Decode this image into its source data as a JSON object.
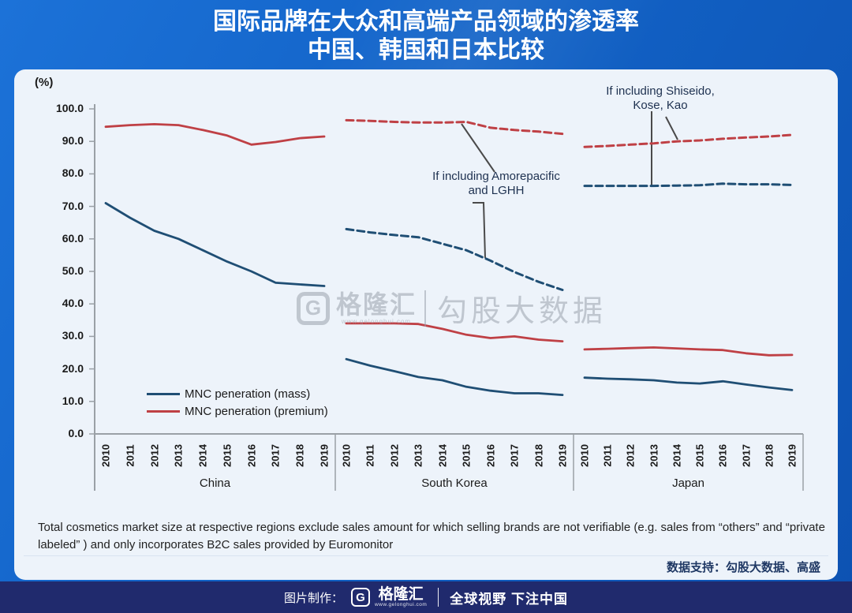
{
  "header": {
    "title_line1": "国际品牌在大众和高端产品领域的渗透率",
    "title_line2": "中国、韩国和日本比较"
  },
  "chart_data": {
    "type": "line",
    "unit_label": "(%)",
    "ylim": [
      0,
      100
    ],
    "yticks": [
      100,
      90,
      80,
      70,
      60,
      50,
      40,
      30,
      20,
      10,
      0
    ],
    "years": [
      "2010",
      "2011",
      "2012",
      "2013",
      "2014",
      "2015",
      "2016",
      "2017",
      "2018",
      "2019"
    ],
    "series_styles": {
      "mass": {
        "color": "#1f4e74",
        "dash": "solid"
      },
      "premium": {
        "color": "#bf4045",
        "dash": "solid"
      },
      "mass_incl": {
        "color": "#1f4e74",
        "dash": "dashed"
      },
      "premium_incl": {
        "color": "#bf4045",
        "dash": "dashed"
      }
    },
    "legend": [
      {
        "label": "MNC peneration (mass)",
        "color": "#1f4e74"
      },
      {
        "label": "MNC peneration (premium)",
        "color": "#bf4045"
      }
    ],
    "regions": [
      {
        "name": "China",
        "series": {
          "mass": [
            71,
            66.5,
            62.5,
            60,
            56.5,
            53,
            50,
            46.5,
            46,
            45.5
          ],
          "premium": [
            94.5,
            95,
            95.3,
            95,
            93.5,
            91.8,
            89,
            89.8,
            91,
            91.5
          ]
        }
      },
      {
        "name": "South Korea",
        "series": {
          "mass": [
            23,
            21,
            19.3,
            17.5,
            16.5,
            14.5,
            13.3,
            12.5,
            12.5,
            12
          ],
          "premium": [
            34,
            34,
            34,
            33.8,
            32.3,
            30.5,
            29.5,
            30,
            29,
            28.5
          ],
          "mass_incl": [
            63,
            62,
            61.2,
            60.5,
            58.5,
            56.5,
            53.3,
            49.8,
            46.8,
            44.3
          ],
          "premium_incl": [
            96.5,
            96.3,
            96,
            95.8,
            95.8,
            96,
            94.2,
            93.5,
            93,
            92.3
          ]
        }
      },
      {
        "name": "Japan",
        "series": {
          "mass": [
            17.3,
            17,
            16.8,
            16.5,
            15.8,
            15.5,
            16.2,
            15.2,
            14.3,
            13.5
          ],
          "premium": [
            26,
            26.2,
            26.4,
            26.6,
            26.3,
            26,
            25.8,
            24.8,
            24.2,
            24.3
          ],
          "mass_incl": [
            76.3,
            76.3,
            76.3,
            76.3,
            76.4,
            76.5,
            77,
            76.8,
            76.8,
            76.6
          ],
          "premium_incl": [
            88.3,
            88.6,
            89,
            89.4,
            90,
            90.3,
            90.8,
            91.2,
            91.5,
            92
          ]
        }
      }
    ],
    "annotations": [
      {
        "id": "sk",
        "text": "If including Amorepacific\nand LGHH"
      },
      {
        "id": "jp",
        "text": "If including Shiseido,\nKose, Kao"
      }
    ]
  },
  "watermark": {
    "logo": "G",
    "brand": "格隆汇",
    "url": "www.gelonghui.com",
    "right": "勾股大数据"
  },
  "footer": {
    "note": "Total cosmetics market size at respective regions exclude sales amount for which selling brands are not verifiable (e.g. sales from “others” and “private labeled” ) and only incorporates B2C sales provided by Euromonitor",
    "support": "数据支持：勾股大数据、高盛"
  },
  "bottombar": {
    "made_by": "图片制作：",
    "logo": "G",
    "brand": "格隆汇",
    "url": "www.gelonghui.com",
    "slogan": "全球视野 下注中国"
  }
}
